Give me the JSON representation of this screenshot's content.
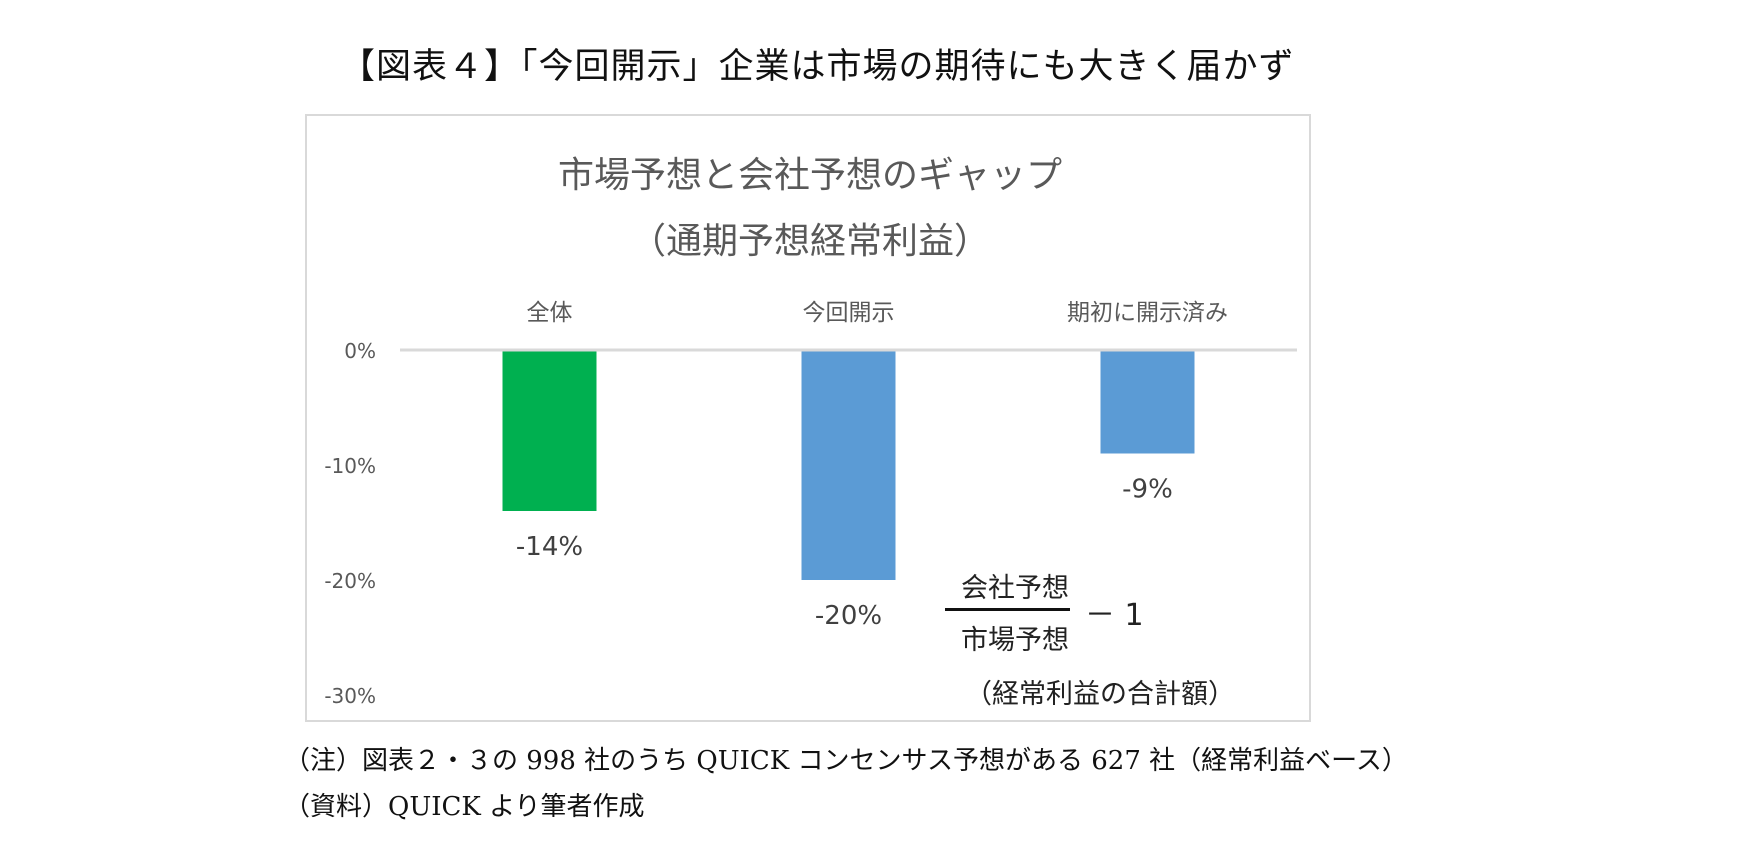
{
  "figure_title": "【図表４】「今回開示」企業は市場の期待にも大きく届かず",
  "chart_data": {
    "type": "bar",
    "title_line1": "市場予想と会社予想のギャップ",
    "title_line2": "（通期予想経常利益）",
    "categories": [
      "全体",
      "今回開示",
      "期初に開示済み"
    ],
    "values": [
      -14,
      -20,
      -9
    ],
    "data_labels": [
      "-14%",
      "-20%",
      "-9%"
    ],
    "bar_colors": [
      "#00b050",
      "#5b9bd5",
      "#5b9bd5"
    ],
    "ylim": [
      -30,
      0
    ],
    "yticks": [
      0,
      -10,
      -20,
      -30
    ],
    "ytick_labels": [
      "0%",
      "-10%",
      "-20%",
      "-30%"
    ],
    "category_axis_position": "top",
    "xlabel": "",
    "ylabel": "",
    "grid": false
  },
  "formula": {
    "numerator": "会社予想",
    "denominator": "市場予想",
    "minus_one": "－ 1",
    "note": "（経常利益の合計額）"
  },
  "footnotes": {
    "note": "（注）図表２・３の 998 社のうち QUICK コンセンサス予想がある 627 社（経常利益ベース）",
    "source": "（資料）QUICK より筆者作成"
  },
  "colors": {
    "tick_label": "#595959",
    "axis_line": "#d9d9d9",
    "data_label": "#404040"
  }
}
